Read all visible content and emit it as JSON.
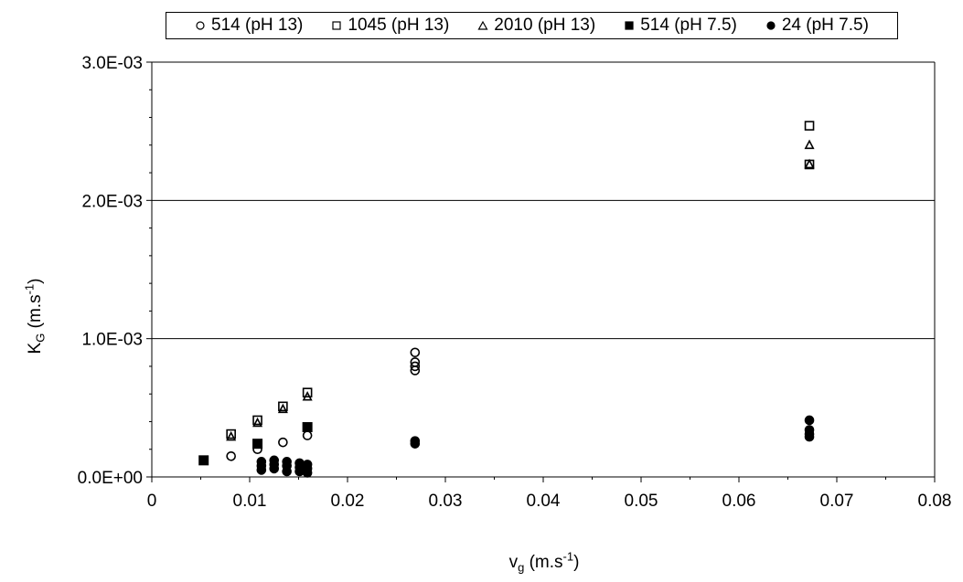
{
  "chart_data": {
    "type": "scatter",
    "xlabel": {
      "main": "v",
      "sub": "g",
      "unit_pre": " (m.s",
      "sup": "-1",
      "unit_post": ")"
    },
    "ylabel": {
      "main": "K",
      "sub": "G",
      "unit_pre": " (m.s",
      "sup": "-1",
      "unit_post": ")"
    },
    "xlim": [
      0,
      0.08
    ],
    "ylim": [
      0,
      0.003
    ],
    "x_ticks": [
      0,
      0.01,
      0.02,
      0.03,
      0.04,
      0.05,
      0.06,
      0.07,
      0.08
    ],
    "x_tick_labels": [
      "0",
      "0.01",
      "0.02",
      "0.03",
      "0.04",
      "0.05",
      "0.06",
      "0.07",
      "0.08"
    ],
    "y_ticks": [
      0,
      0.001,
      0.002,
      0.003
    ],
    "y_tick_labels": [
      "0.0E+00",
      "1.0E-03",
      "2.0E-03",
      "3.0E-03"
    ],
    "grid": "horizontal major lines",
    "legend_position": "top",
    "series": [
      {
        "name": "514 (pH 13)",
        "marker": "circle-open",
        "points": [
          [
            0.0081,
            0.00015
          ],
          [
            0.0108,
            0.0002
          ],
          [
            0.0134,
            0.00025
          ],
          [
            0.0159,
            0.0003
          ],
          [
            0.0269,
            0.0009
          ],
          [
            0.0269,
            0.00083
          ],
          [
            0.0269,
            0.0008
          ],
          [
            0.0269,
            0.00077
          ]
        ]
      },
      {
        "name": "1045 (pH 13)",
        "marker": "square-open",
        "points": [
          [
            0.0081,
            0.00031
          ],
          [
            0.0108,
            0.00041
          ],
          [
            0.0134,
            0.00051
          ],
          [
            0.0159,
            0.00061
          ],
          [
            0.0672,
            0.00254
          ],
          [
            0.0672,
            0.00226
          ]
        ]
      },
      {
        "name": "2010 (pH 13)",
        "marker": "triangle-open",
        "points": [
          [
            0.0081,
            0.00029
          ],
          [
            0.0108,
            0.00039
          ],
          [
            0.0134,
            0.00049
          ],
          [
            0.0159,
            0.00058
          ],
          [
            0.0672,
            0.0024
          ],
          [
            0.0672,
            0.00226
          ]
        ]
      },
      {
        "name": "514 (pH 7.5)",
        "marker": "square-filled",
        "points": [
          [
            0.0053,
            0.00012
          ],
          [
            0.0108,
            0.00024
          ],
          [
            0.0159,
            0.00036
          ]
        ]
      },
      {
        "name": "24 (pH 7.5)",
        "marker": "circle-filled",
        "points": [
          [
            0.0112,
            0.00011
          ],
          [
            0.0112,
            8e-05
          ],
          [
            0.0112,
            5e-05
          ],
          [
            0.0125,
            0.00012
          ],
          [
            0.0125,
            9e-05
          ],
          [
            0.0125,
            6e-05
          ],
          [
            0.0138,
            0.00011
          ],
          [
            0.0138,
            8e-05
          ],
          [
            0.0138,
            4e-05
          ],
          [
            0.0151,
            0.0001
          ],
          [
            0.0151,
            7e-05
          ],
          [
            0.0151,
            4e-05
          ],
          [
            0.0159,
            9e-05
          ],
          [
            0.0159,
            6e-05
          ],
          [
            0.0159,
            3e-05
          ],
          [
            0.0269,
            0.00026
          ],
          [
            0.0269,
            0.00024
          ],
          [
            0.0672,
            0.00041
          ],
          [
            0.0672,
            0.00034
          ],
          [
            0.0672,
            0.00031
          ],
          [
            0.0672,
            0.00029
          ]
        ]
      }
    ]
  }
}
